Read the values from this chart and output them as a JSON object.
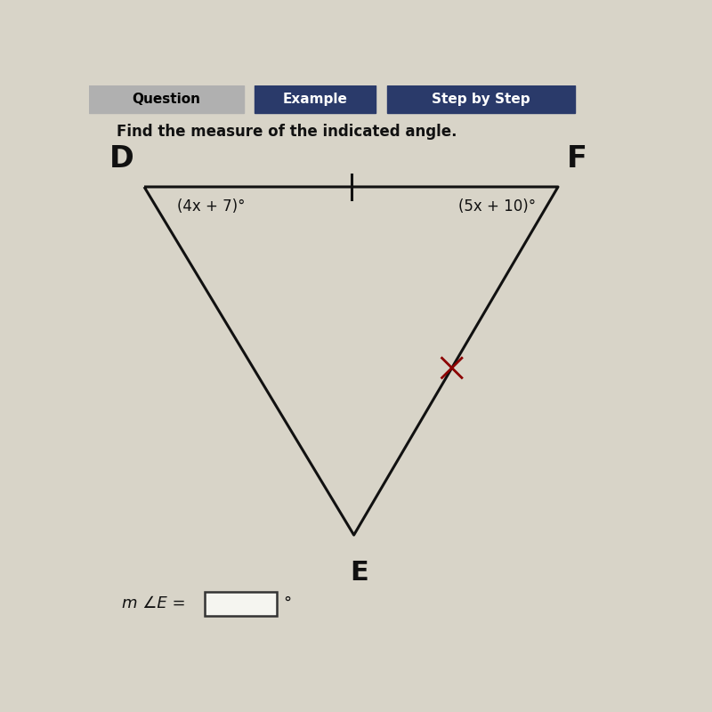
{
  "title_text": "Find the measure of the indicated angle.",
  "header_tabs": [
    "Question",
    "Example",
    "Step by Step"
  ],
  "vertex_D": [
    0.1,
    0.815
  ],
  "vertex_F": [
    0.85,
    0.815
  ],
  "vertex_E": [
    0.48,
    0.18
  ],
  "label_D": "D",
  "label_F": "F",
  "label_E": "E",
  "angle_D_label": "(4x + 7)°",
  "angle_F_label": "(5x + 10)°",
  "answer_label": "m ∠E =",
  "bg_color": "#d8d4c8",
  "triangle_color": "#111111",
  "text_color": "#111111",
  "tab_bg_q": "#b0b0b0",
  "tab_bg_ex": "#2a3a6a",
  "tab_bg_step": "#2a3a6a",
  "xmark_color": "#8b0000",
  "xmark_t": 0.48
}
